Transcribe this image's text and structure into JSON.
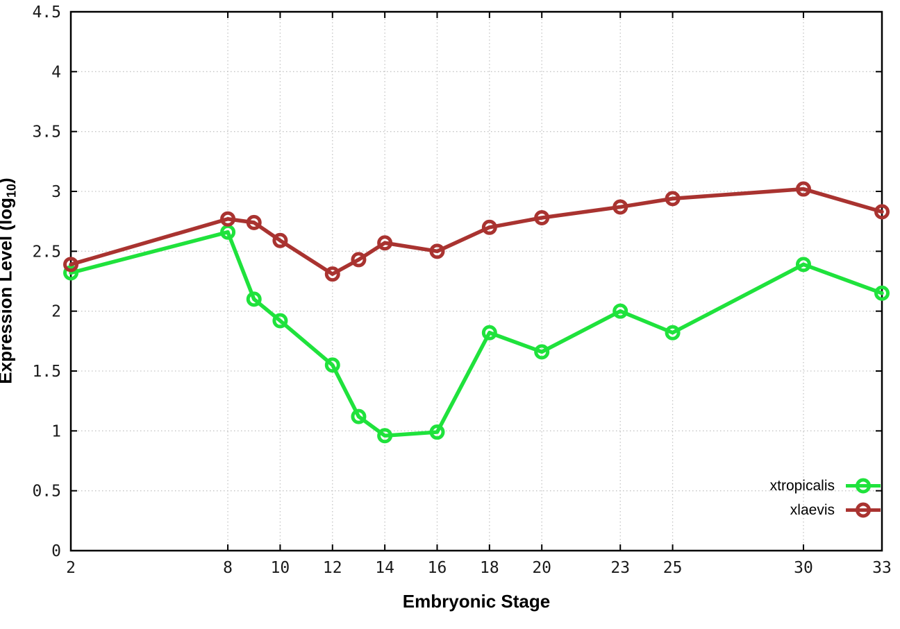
{
  "figure": {
    "background_color": "#ffffff",
    "border_color": "#000000",
    "grid_color": "#c4c4c4",
    "tick_label_color": "#1a1a1a"
  },
  "labels": {
    "xlabel": "Embryonic Stage",
    "ylabel_main": "Expression Level (log",
    "ylabel_sub": "10",
    "ylabel_close": ")"
  },
  "legend": {
    "entries": [
      {
        "label": "xtropicalis"
      },
      {
        "label": "xlaevis"
      }
    ]
  },
  "chart_data": {
    "type": "line",
    "title": "",
    "xlabel": "Embryonic Stage",
    "ylabel": "Expression Level (log10)",
    "xlim": [
      2,
      33
    ],
    "ylim": [
      0,
      4.5
    ],
    "grid": true,
    "grid_style": "dotted",
    "legend_position": "bottom-right",
    "x_ticks": [
      2,
      8,
      10,
      12,
      14,
      16,
      18,
      20,
      23,
      25,
      30,
      33
    ],
    "y_ticks": [
      0,
      0.5,
      1,
      1.5,
      2,
      2.5,
      3,
      3.5,
      4,
      4.5
    ],
    "y_tick_labels": [
      "0",
      "0.5",
      "1",
      "1.5",
      "2",
      "2.5",
      "3",
      "3.5",
      "4",
      "4.5"
    ],
    "x": [
      2,
      8,
      9,
      10,
      12,
      13,
      14,
      16,
      18,
      20,
      23,
      25,
      30,
      33
    ],
    "series": [
      {
        "name": "xtropicalis",
        "color": "#1fe23c",
        "marker": "open-circle",
        "values": [
          2.32,
          2.66,
          2.1,
          1.92,
          1.55,
          1.12,
          0.96,
          0.99,
          1.82,
          1.66,
          2.0,
          1.82,
          2.39,
          2.15
        ]
      },
      {
        "name": "xlaevis",
        "color": "#a93330",
        "marker": "open-circle",
        "values": [
          2.39,
          2.77,
          2.74,
          2.59,
          2.31,
          2.43,
          2.57,
          2.5,
          2.7,
          2.78,
          2.87,
          2.94,
          3.02,
          2.83
        ]
      }
    ]
  }
}
